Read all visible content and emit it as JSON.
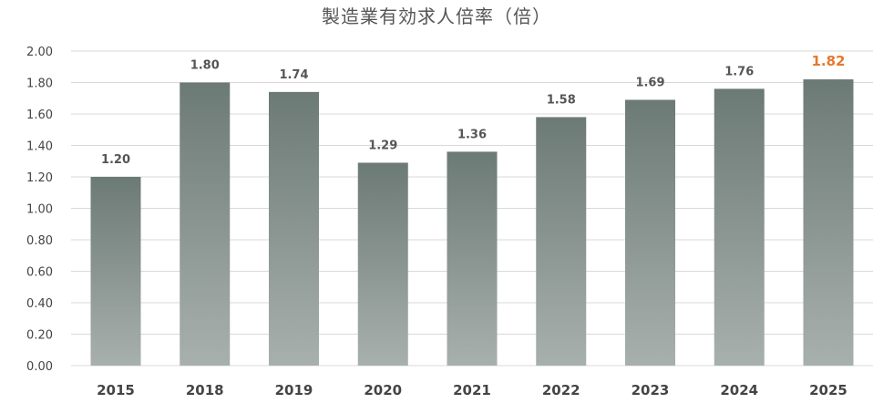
{
  "chart_data": {
    "type": "bar",
    "title": "製造業有効求人倍率（倍）",
    "categories": [
      "2015",
      "2018",
      "2019",
      "2020",
      "2021",
      "2022",
      "2023",
      "2024",
      "2025"
    ],
    "values": [
      1.2,
      1.8,
      1.74,
      1.29,
      1.36,
      1.58,
      1.69,
      1.76,
      1.82
    ],
    "value_labels": [
      "1.20",
      "1.80",
      "1.74",
      "1.29",
      "1.36",
      "1.58",
      "1.69",
      "1.76",
      "1.82"
    ],
    "yticks": [
      "0.00",
      "0.20",
      "0.40",
      "0.60",
      "0.80",
      "1.00",
      "1.20",
      "1.40",
      "1.60",
      "1.80",
      "2.00"
    ],
    "ylim": [
      0,
      2
    ],
    "xlabel": "",
    "ylabel": "",
    "grid": true,
    "highlight_index": 8,
    "colors": {
      "bar_top": "#6c7a75",
      "bar_bottom": "#a8b0ad",
      "highlight_label": "#e8782a"
    }
  }
}
